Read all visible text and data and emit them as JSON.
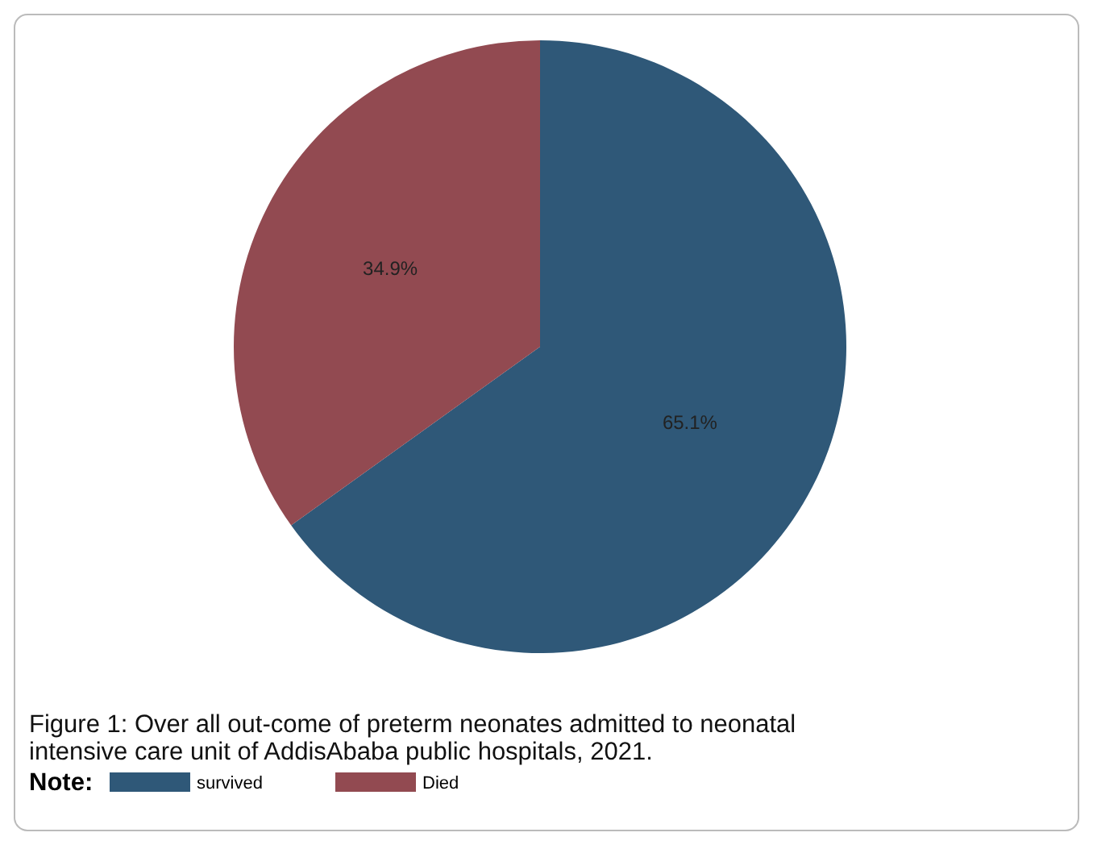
{
  "chart_data": {
    "type": "pie",
    "categories": [
      "survived",
      "Died"
    ],
    "values": [
      65.1,
      34.9
    ],
    "colors": [
      "#2f5878",
      "#924a51"
    ],
    "value_labels": [
      "65.1%",
      "34.9%"
    ],
    "legend": "bottom",
    "legend_title": "Note:",
    "annotations": [
      "Figure  1: Over all out-come of preterm neonates admitted to neonatal intensive care unit of AddisAbaba public hospitals, 2021."
    ]
  }
}
